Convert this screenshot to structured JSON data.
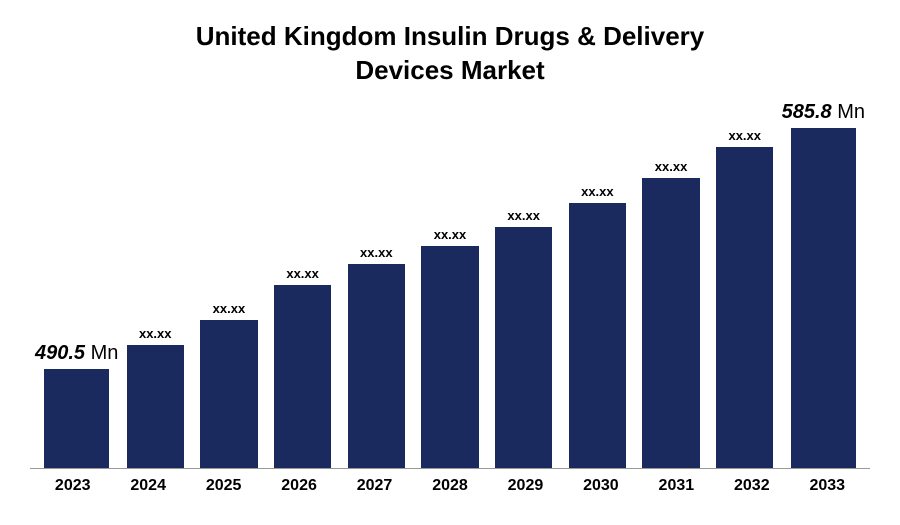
{
  "chart": {
    "type": "bar",
    "title_line1": "United Kingdom Insulin Drugs & Delivery",
    "title_line2": "Devices Market",
    "title_fontsize": 26,
    "title_color": "#000000",
    "bar_color": "#1a2a5e",
    "background_color": "#ffffff",
    "axis_line_color": "#999999",
    "x_label_fontsize": 16,
    "data_label_fontsize_small": 13,
    "data_label_fontsize_large": 20,
    "bar_width_ratio": 0.78,
    "ylim": [
      0,
      300
    ],
    "categories": [
      "2023",
      "2024",
      "2025",
      "2026",
      "2027",
      "2028",
      "2029",
      "2030",
      "2031",
      "2032",
      "2033"
    ],
    "values": [
      80,
      100,
      120,
      148,
      165,
      180,
      195,
      215,
      235,
      260,
      275
    ],
    "labels": [
      {
        "text": "490.5",
        "unit": "Mn",
        "italic": true,
        "large": true
      },
      {
        "text": "xx.xx",
        "unit": "",
        "italic": false,
        "large": false
      },
      {
        "text": "xx.xx",
        "unit": "",
        "italic": false,
        "large": false
      },
      {
        "text": "xx.xx",
        "unit": "",
        "italic": false,
        "large": false
      },
      {
        "text": "xx.xx",
        "unit": "",
        "italic": false,
        "large": false
      },
      {
        "text": "xx.xx",
        "unit": "",
        "italic": false,
        "large": false
      },
      {
        "text": "xx.xx",
        "unit": "",
        "italic": false,
        "large": false
      },
      {
        "text": "xx.xx",
        "unit": "",
        "italic": false,
        "large": false
      },
      {
        "text": "xx.xx",
        "unit": "",
        "italic": false,
        "large": false
      },
      {
        "text": "xx.xx",
        "unit": "",
        "italic": false,
        "large": false
      },
      {
        "text": "585.8",
        "unit": "Mn",
        "italic": true,
        "large": true
      }
    ]
  }
}
